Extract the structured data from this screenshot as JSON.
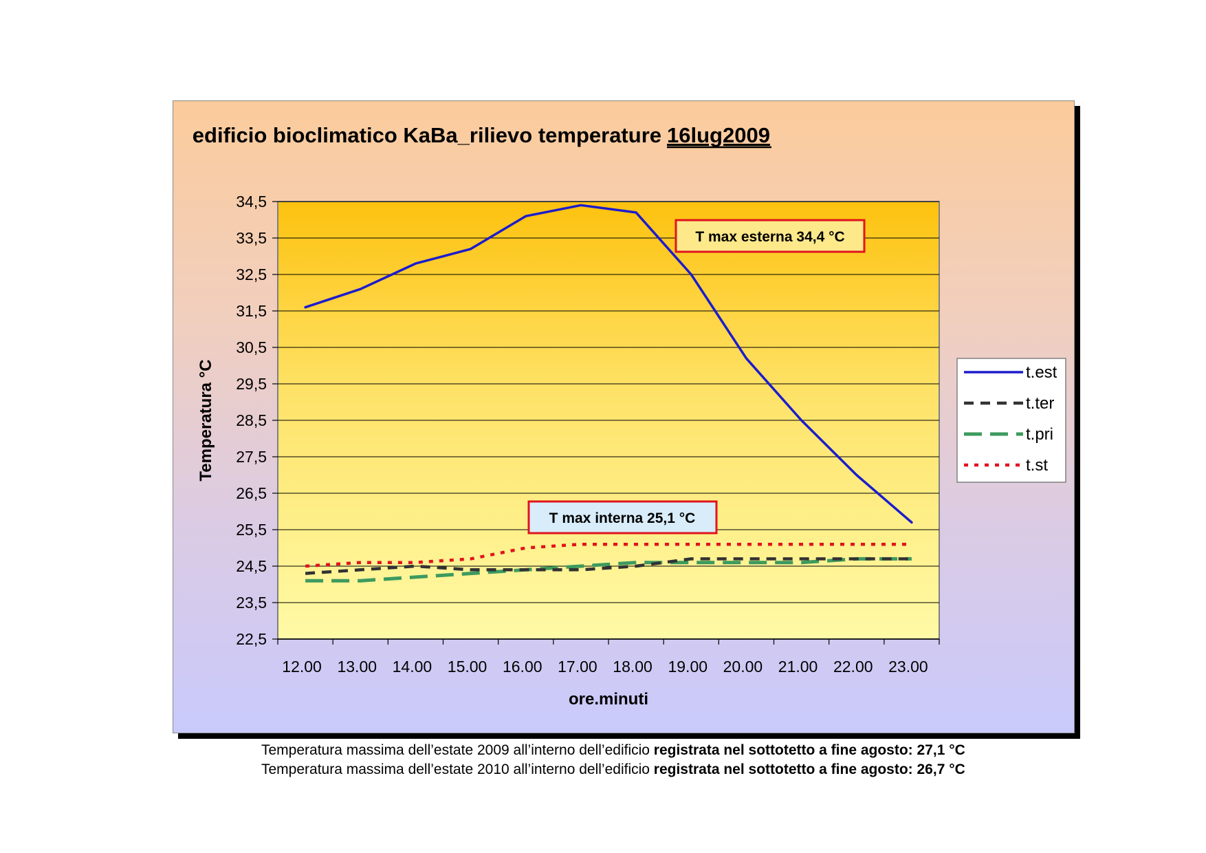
{
  "chart_data": {
    "type": "line",
    "title": "edificio bioclimatico KaBa_rilievo temperature",
    "title_date": "16lug2009",
    "xlabel": "ore.minuti",
    "ylabel": "Temperatura °C",
    "ylim": [
      22.5,
      34.5
    ],
    "y_ticks": [
      "22,5",
      "23,5",
      "24,5",
      "25,5",
      "26,5",
      "27,5",
      "28,5",
      "29,5",
      "30,5",
      "31,5",
      "32,5",
      "33,5",
      "34,5"
    ],
    "grid": true,
    "legend_position": "right",
    "categories": [
      "12.00",
      "13.00",
      "14.00",
      "15.00",
      "16.00",
      "17.00",
      "18.00",
      "19.00",
      "20.00",
      "21.00",
      "22.00",
      "23.00"
    ],
    "series": [
      {
        "name": "t.est",
        "color": "#1c1ccc",
        "style": "solid",
        "values": [
          31.6,
          32.1,
          32.8,
          33.2,
          34.1,
          34.4,
          34.2,
          32.5,
          30.2,
          28.5,
          27.0,
          25.7
        ]
      },
      {
        "name": "t.ter",
        "color": "#333333",
        "style": "dash",
        "values": [
          24.3,
          24.4,
          24.5,
          24.4,
          24.4,
          24.4,
          24.5,
          24.7,
          24.7,
          24.7,
          24.7,
          24.7
        ]
      },
      {
        "name": "t.pri",
        "color": "#3d9a5e",
        "style": "longdash",
        "values": [
          24.1,
          24.1,
          24.2,
          24.3,
          24.4,
          24.5,
          24.6,
          24.6,
          24.6,
          24.6,
          24.7,
          24.7
        ]
      },
      {
        "name": "t.st",
        "color": "#e0141d",
        "style": "dot",
        "values": [
          24.5,
          24.6,
          24.6,
          24.7,
          25.0,
          25.1,
          25.1,
          25.1,
          25.1,
          25.1,
          25.1,
          25.1
        ]
      }
    ],
    "annotations": [
      {
        "text": "T max esterna 34,4 °C"
      },
      {
        "text": "T max interna 25,1 °C"
      }
    ]
  },
  "footnotes": [
    {
      "normal": "Temperatura massima dell’estate 2009 all’interno dell’edificio ",
      "bold": "registrata nel sottotetto a fine agosto: 27,1 °C"
    },
    {
      "normal": "Temperatura massima dell’estate 2010 all’interno dell’edificio ",
      "bold": "registrata nel sottotetto a fine agosto: 26,7 °C"
    }
  ]
}
